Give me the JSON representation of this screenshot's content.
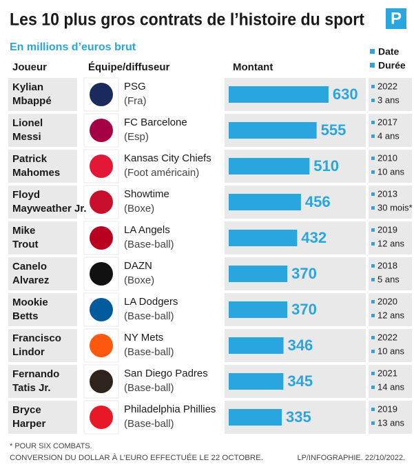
{
  "header": {
    "title": "Les 10 plus gros contrats de l’histoire du sport",
    "logo": "P",
    "subtitle": "En millions d’euros brut",
    "legend": [
      "Date",
      "Durée"
    ],
    "columns": [
      "Joueur",
      "Équipe/diffuseur",
      "Montant"
    ]
  },
  "rows": [
    {
      "player": [
        "Kylian",
        "Mbappé"
      ],
      "team": [
        "PSG",
        "(Fra)"
      ],
      "amount": 630,
      "date": "2022",
      "duration": "3 ans"
    },
    {
      "player": [
        "Lionel",
        "Messi"
      ],
      "team": [
        "FC Barcelone",
        "(Esp)"
      ],
      "amount": 555,
      "date": "2017",
      "duration": "4 ans"
    },
    {
      "player": [
        "Patrick",
        "Mahomes"
      ],
      "team": [
        "Kansas City Chiefs",
        "(Foot américain)"
      ],
      "amount": 510,
      "date": "2010",
      "duration": "10 ans"
    },
    {
      "player": [
        "Floyd",
        "Mayweather Jr."
      ],
      "team": [
        "Showtime",
        "(Boxe)"
      ],
      "amount": 456,
      "date": "2013",
      "duration": "30 mois*"
    },
    {
      "player": [
        "Mike",
        "Trout"
      ],
      "team": [
        "LA Angels",
        "(Base-ball)"
      ],
      "amount": 432,
      "date": "2019",
      "duration": "12 ans"
    },
    {
      "player": [
        "Canelo",
        "Alvarez"
      ],
      "team": [
        "DAZN",
        "(Boxe)"
      ],
      "amount": 370,
      "date": "2018",
      "duration": "5 ans"
    },
    {
      "player": [
        "Mookie",
        "Betts"
      ],
      "team": [
        "LA Dodgers",
        "(Base-ball)"
      ],
      "amount": 370,
      "date": "2020",
      "duration": "12 ans"
    },
    {
      "player": [
        "Francisco",
        "Lindor"
      ],
      "team": [
        "NY Mets",
        "(Base-ball)"
      ],
      "amount": 346,
      "date": "2022",
      "duration": "10 ans"
    },
    {
      "player": [
        "Fernando",
        "Tatis Jr."
      ],
      "team": [
        "San Diego Padres",
        "(Base-ball)"
      ],
      "amount": 345,
      "date": "2021",
      "duration": "14 ans"
    },
    {
      "player": [
        "Bryce",
        "Harper"
      ],
      "team": [
        "Philadelphia Phillies",
        "(Base-ball)"
      ],
      "amount": 335,
      "date": "2019",
      "duration": "13 ans"
    }
  ],
  "footer": {
    "note": "* POUR SIX COMBATS.",
    "conversion": "CONVERSION DU DOLLAR À L’EURO EFFECTUÉE LE 22 OCTOBRE.",
    "credit": "LP/INFOGRAPHIE. 22/10/2022."
  }
}
